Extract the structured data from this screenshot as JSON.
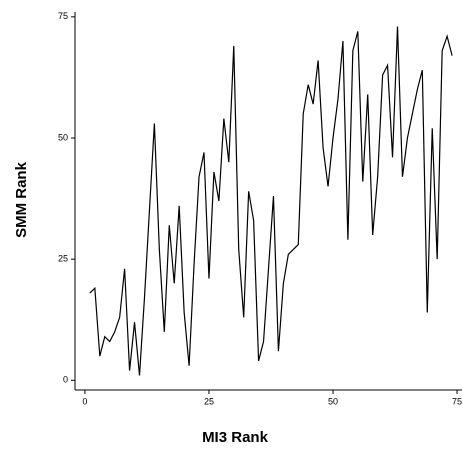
{
  "chart_data": {
    "type": "line",
    "x_label": "MI3 Rank",
    "y_label": "SMM Rank",
    "x": [
      1,
      2,
      3,
      4,
      5,
      6,
      7,
      8,
      9,
      10,
      11,
      12,
      13,
      14,
      15,
      16,
      17,
      18,
      19,
      20,
      21,
      22,
      23,
      24,
      25,
      26,
      27,
      28,
      29,
      30,
      31,
      32,
      33,
      34,
      35,
      36,
      37,
      38,
      39,
      40,
      41,
      42,
      43,
      44,
      45,
      46,
      47,
      48,
      49,
      50,
      51,
      52,
      53,
      54,
      55,
      56,
      57,
      58,
      59,
      60,
      61,
      62,
      63,
      64,
      65,
      66,
      67,
      68,
      69,
      70,
      71,
      72,
      73,
      74
    ],
    "series": [
      {
        "color": "#000000",
        "values": [
          18,
          19,
          5,
          9,
          8,
          10,
          13,
          23,
          2,
          12,
          1,
          17,
          35,
          53,
          27,
          10,
          32,
          20,
          36,
          14,
          3,
          24,
          42,
          47,
          21,
          43,
          37,
          54,
          45,
          69,
          27,
          13,
          39,
          33,
          4,
          8,
          23,
          38,
          6,
          20,
          26,
          27,
          28,
          55,
          61,
          57,
          66,
          48,
          40,
          50,
          58,
          70,
          29,
          68,
          72,
          41,
          59,
          30,
          42,
          63,
          65,
          46,
          73,
          42,
          50,
          55,
          60,
          64,
          14,
          52,
          25,
          68,
          71,
          67
        ]
      }
    ],
    "xlim": [
      -2,
      76
    ],
    "ylim": [
      -2,
      76
    ],
    "xticks": [
      0,
      25,
      50,
      75
    ],
    "yticks": [
      0,
      25,
      50,
      75
    ]
  }
}
